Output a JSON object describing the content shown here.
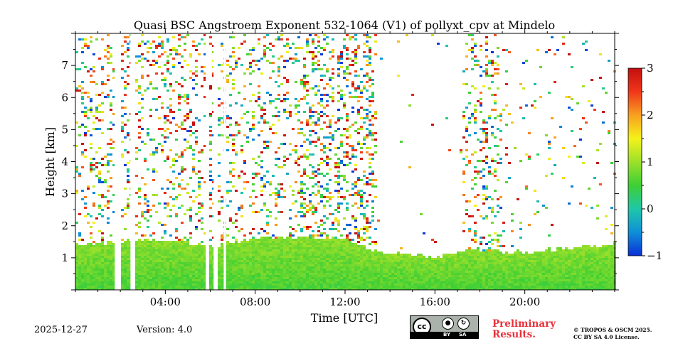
{
  "chart_data": {
    "type": "heatmap",
    "title": "Quasi BSC Angstroem Exponent 532-1064 (V1) of pollyxt_cpv at Mindelo",
    "xlabel": "Time [UTC]",
    "ylabel": "Height [km]",
    "xlim_hours": [
      0,
      24
    ],
    "ylim_km": [
      0,
      8
    ],
    "x_ticks": [
      {
        "hour": 4,
        "label": "04:00"
      },
      {
        "hour": 8,
        "label": "08:00"
      },
      {
        "hour": 12,
        "label": "12:00"
      },
      {
        "hour": 16,
        "label": "16:00"
      },
      {
        "hour": 20,
        "label": "20:00"
      }
    ],
    "y_ticks": [
      {
        "value": 1,
        "label": "1"
      },
      {
        "value": 2,
        "label": "2"
      },
      {
        "value": 3,
        "label": "3"
      },
      {
        "value": 4,
        "label": "4"
      },
      {
        "value": 5,
        "label": "5"
      },
      {
        "value": 6,
        "label": "6"
      },
      {
        "value": 7,
        "label": "7"
      }
    ],
    "colorbar": {
      "min": -1,
      "max": 3,
      "ticks": [
        {
          "value": 3,
          "label": "3"
        },
        {
          "value": 2,
          "label": "2"
        },
        {
          "value": 1,
          "label": "1"
        },
        {
          "value": 0,
          "label": "0"
        },
        {
          "value": -1,
          "label": "−1"
        }
      ],
      "colormap": [
        "#0a2fd6",
        "#0f8fd8",
        "#1fc7a8",
        "#3ecf35",
        "#9be02a",
        "#f5f21a",
        "#f7a020",
        "#f0361a",
        "#c20f0f"
      ]
    },
    "data_gaps_hours": [
      [
        1.75,
        1.95
      ],
      [
        2.45,
        2.65
      ],
      [
        5.8,
        5.9
      ],
      [
        6.15,
        6.25
      ],
      [
        6.6,
        6.7
      ]
    ],
    "boundary_layer_top_km": [
      {
        "hour": 0,
        "km": 1.45
      },
      {
        "hour": 2,
        "km": 1.55
      },
      {
        "hour": 4,
        "km": 1.6
      },
      {
        "hour": 6,
        "km": 1.4
      },
      {
        "hour": 8,
        "km": 1.65
      },
      {
        "hour": 10,
        "km": 1.7
      },
      {
        "hour": 12,
        "km": 1.6
      },
      {
        "hour": 13,
        "km": 1.3
      },
      {
        "hour": 16,
        "km": 1.05
      },
      {
        "hour": 17.5,
        "km": 1.3
      },
      {
        "hour": 18.5,
        "km": 1.25
      },
      {
        "hour": 20,
        "km": 1.2
      },
      {
        "hour": 22,
        "km": 1.35
      },
      {
        "hour": 24,
        "km": 1.5
      }
    ]
  },
  "footer": {
    "date": "2025-12-27",
    "version": "Version: 4.0",
    "license_badge": {
      "cc": "cc",
      "by": "BY",
      "sa": "SA"
    },
    "preliminary_line1": "Preliminary",
    "preliminary_line2": "Results.",
    "copyright_line1": "© TROPOS & OSCM 2025.",
    "copyright_line2": "CC BY SA 4.0 License."
  }
}
